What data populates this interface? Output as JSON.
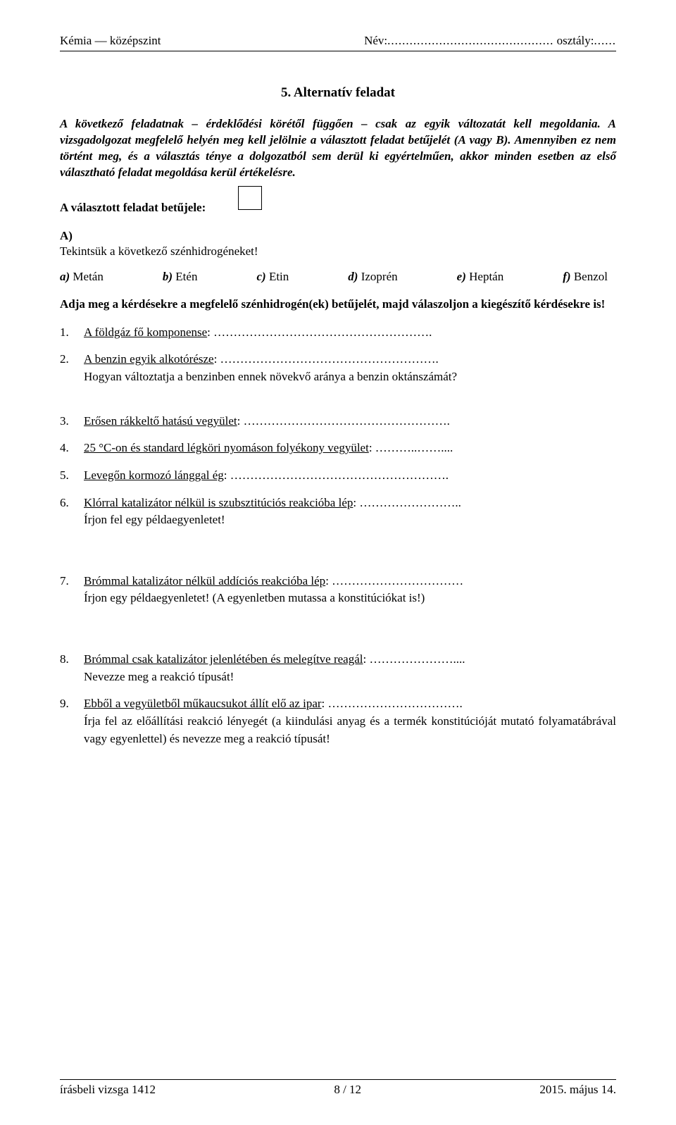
{
  "header": {
    "subject": "Kémia — középszint",
    "name_label": "Név:",
    "name_dots": ".............................................",
    "class_label": "osztály:",
    "class_dots": "......"
  },
  "title": "5. Alternatív feladat",
  "intro": "A következő feladatnak – érdeklődési körétől függően – csak az egyik változatát kell megoldania. A vizsgadolgozat megfelelő helyén meg kell jelölnie a választott feladat betűjelét (A vagy B). Amennyiben ez nem történt meg, és a választás ténye a dolgozatból sem derül ki egyértelműen, akkor minden esetben az első választható feladat megoldása kerül értékelésre.",
  "letter_label": "A választott feladat betűjele:",
  "sectionA": {
    "label": "A)",
    "line2": "Tekintsük a következő szénhidrogéneket!"
  },
  "options": [
    {
      "letter": "a)",
      "text": "Metán"
    },
    {
      "letter": "b)",
      "text": "Etén"
    },
    {
      "letter": "c)",
      "text": "Etin"
    },
    {
      "letter": "d)",
      "text": "Izoprén"
    },
    {
      "letter": "e)",
      "text": "Heptán"
    },
    {
      "letter": "f)",
      "text": "Benzol"
    }
  ],
  "instruction": "Adja meg a kérdésekre a megfelelő szénhidrogén(ek) betűjelét, majd válaszoljon a kiegészítő kérdésekre is!",
  "questions": [
    {
      "n": "1.",
      "text_under": "A földgáz fő komponense",
      "tail": ": ……………………………………………….",
      "gap": "normal"
    },
    {
      "n": "2.",
      "text_under": "A benzin egyik alkotórésze",
      "tail": ": ……………………………………………….",
      "extra": "Hogyan változtatja a benzinben ennek növekvő aránya a benzin oktánszámát?",
      "gap": "big"
    },
    {
      "n": "3.",
      "text_under": "Erősen rákkeltő hatású vegyület",
      "tail": ": …………………………………………….",
      "gap": "normal"
    },
    {
      "n": "4.",
      "text_under": "25 °C-on és standard légköri nyomáson folyékony vegyület",
      "tail": ": ………..……....",
      "gap": "normal"
    },
    {
      "n": "5.",
      "text_under": "Levegőn kormozó lánggal ég",
      "tail": ": ……………………………………………….",
      "gap": "normal"
    },
    {
      "n": "6.",
      "text_under": "Klórral katalizátor nélkül is szubsztitúciós reakcióba lép",
      "tail": ": ……………………..",
      "extra": "Írjon fel egy példaegyenletet!",
      "gap": "bigger"
    },
    {
      "n": "7.",
      "text_under": "Brómmal katalizátor nélkül addíciós reakcióba lép",
      "tail": ": ……………………………",
      "extra": "Írjon egy példaegyenletet! (A egyenletben mutassa a konstitúciókat is!)",
      "gap": "bigger"
    },
    {
      "n": "8.",
      "text_under": "Brómmal csak katalizátor jelenlétében és melegítve reagál",
      "tail": ": …………………....",
      "extra": "Nevezze meg a reakció típusát!",
      "gap": "normal"
    },
    {
      "n": "9.",
      "text_under": "Ebből a vegyületből műkaucsukot állít elő az ipar",
      "tail": ": …………………………….",
      "extra": "Írja fel az előállítási reakció lényegét (a kiindulási anyag és a termék konstitúcióját mutató folyamatábrával vagy egyenlettel) és nevezze meg a reakció típusát!",
      "gap": "normal"
    }
  ],
  "footer": {
    "left": "írásbeli vizsga 1412",
    "center": "8 / 12",
    "right": "2015. május 14."
  }
}
